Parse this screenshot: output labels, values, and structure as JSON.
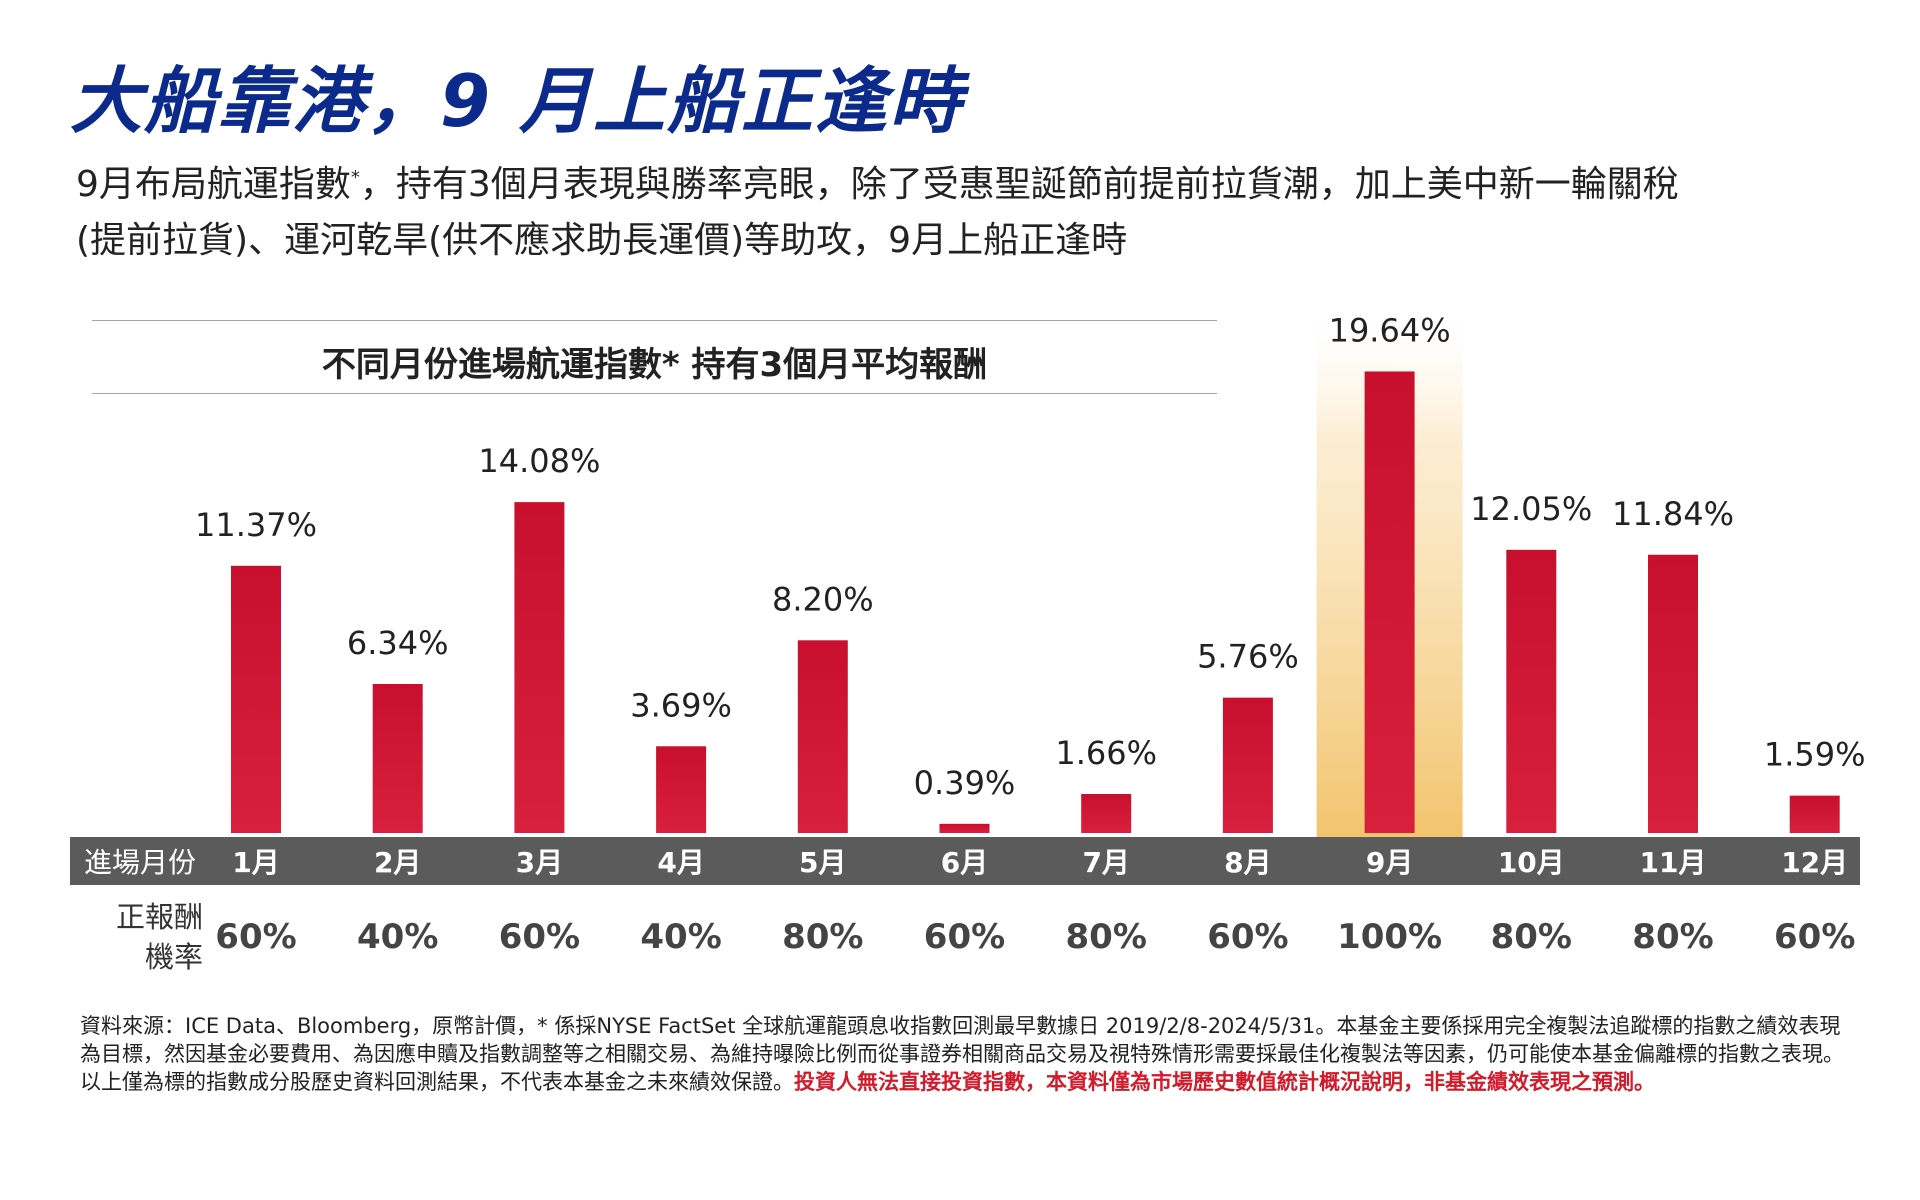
{
  "header": {
    "title": "大船靠港，9 月上船正逢時",
    "subtitle_part1": "9月布局航運指數",
    "subtitle_mark": "*",
    "subtitle_part2": "，持有3個月表現與勝率亮眼，除了受惠聖誕節前提前拉貨潮，加上美中新一輪關稅(提前拉貨)、運河乾旱(供不應求助長運價)等助攻，9月上船正逢時"
  },
  "chart_data": {
    "type": "bar",
    "title": "不同月份進場航運指數*  持有3個月平均報酬",
    "x_row_label": "進場月份",
    "rate_row_label_line1": "正報酬",
    "rate_row_label_line2": "機率",
    "categories": [
      "1月",
      "2月",
      "3月",
      "4月",
      "5月",
      "6月",
      "7月",
      "8月",
      "9月",
      "10月",
      "11月",
      "12月"
    ],
    "values": [
      11.37,
      6.34,
      14.08,
      3.69,
      8.2,
      0.39,
      1.66,
      5.76,
      19.64,
      12.05,
      11.84,
      1.59
    ],
    "value_labels": [
      "11.37%",
      "6.34%",
      "14.08%",
      "3.69%",
      "8.20%",
      "0.39%",
      "1.66%",
      "5.76%",
      "19.64%",
      "12.05%",
      "11.84%",
      "1.59%"
    ],
    "positive_rate_labels": [
      "60%",
      "40%",
      "60%",
      "40%",
      "80%",
      "60%",
      "80%",
      "60%",
      "100%",
      "80%",
      "80%",
      "60%"
    ],
    "highlight_category": "9月",
    "ylim": [
      0,
      20
    ],
    "colors": {
      "bar": "#c8102e",
      "highlight_glow": "#f2c46d",
      "axis_band": "#5b5b5b",
      "axis_text": "#ffffff"
    }
  },
  "footnote": {
    "text": "資料來源：ICE Data、Bloomberg，原幣計價，* 係採NYSE FactSet 全球航運龍頭息收指數回測最早數據日 2019/2/8-2024/5/31。本基金主要係採用完全複製法追蹤標的指數之績效表現為目標，然因基金必要費用、為因應申贖及指數調整等之相關交易、為維持曝險比例而從事證券相關商品交易及視特殊情形需要採最佳化複製法等因素，仍可能使本基金偏離標的指數之表現。以上僅為標的指數成分股歷史資料回測結果，不代表本基金之未來績效保證。",
    "warning": "投資人無法直接投資指數，本資料僅為市場歷史數值統計概況說明，非基金績效表現之預測。"
  }
}
